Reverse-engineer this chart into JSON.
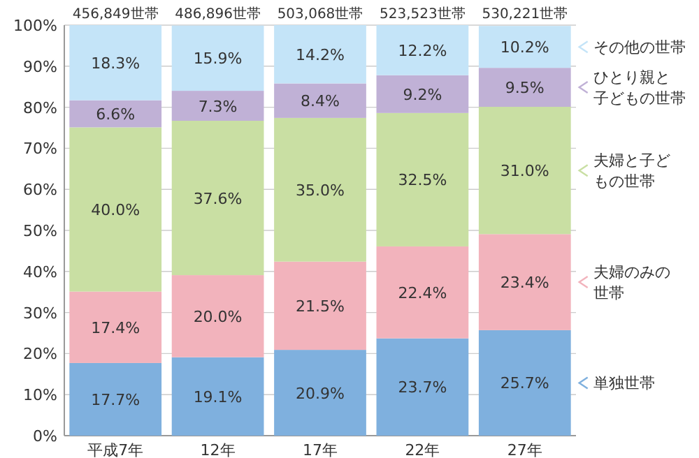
{
  "chart_data": {
    "type": "bar",
    "stacked": true,
    "categories": [
      "平成7年",
      "12年",
      "17年",
      "22年",
      "27年"
    ],
    "series": [
      {
        "name": "単独世帯",
        "color": "#7fb0de",
        "values": [
          17.7,
          19.1,
          20.9,
          23.7,
          25.7
        ],
        "value_labels": [
          "17.7%",
          "19.1%",
          "20.9%",
          "23.7%",
          "25.7%"
        ]
      },
      {
        "name": "夫婦のみの世帯",
        "color": "#f2b3bc",
        "values": [
          17.4,
          20.0,
          21.5,
          22.4,
          23.4
        ],
        "value_labels": [
          "17.4%",
          "20.0%",
          "21.5%",
          "22.4%",
          "23.4%"
        ]
      },
      {
        "name": "夫婦と子どもの世帯",
        "color": "#c9dfa3",
        "values": [
          40.0,
          37.6,
          35.0,
          32.5,
          31.0
        ],
        "value_labels": [
          "40.0%",
          "37.6%",
          "35.0%",
          "32.5%",
          "31.0%"
        ]
      },
      {
        "name": "ひとり親と子どもの世帯",
        "color": "#c0b1d6",
        "values": [
          6.6,
          7.3,
          8.4,
          9.2,
          9.5
        ],
        "value_labels": [
          "6.6%",
          "7.3%",
          "8.4%",
          "9.2%",
          "9.5%"
        ]
      },
      {
        "name": "その他の世帯",
        "color": "#c4e4f8",
        "values": [
          18.3,
          15.9,
          14.2,
          12.2,
          10.2
        ],
        "value_labels": [
          "18.3%",
          "15.9%",
          "14.2%",
          "12.2%",
          "10.2%"
        ]
      }
    ],
    "annotations": [
      "456,849世帯",
      "486,896世帯",
      "503,068世帯",
      "523,523世帯",
      "530,221世帯"
    ],
    "ylim": [
      0,
      100
    ],
    "yticks": [
      {
        "value": 0,
        "label": "0%"
      },
      {
        "value": 10,
        "label": "10%"
      },
      {
        "value": 20,
        "label": "20%"
      },
      {
        "value": 30,
        "label": "30%"
      },
      {
        "value": 40,
        "label": "40%"
      },
      {
        "value": 50,
        "label": "50%"
      },
      {
        "value": 60,
        "label": "60%"
      },
      {
        "value": 70,
        "label": "70%"
      },
      {
        "value": 80,
        "label": "80%"
      },
      {
        "value": 90,
        "label": "90%"
      },
      {
        "value": 100,
        "label": "100%"
      }
    ],
    "grid": "y",
    "legend": "right"
  }
}
